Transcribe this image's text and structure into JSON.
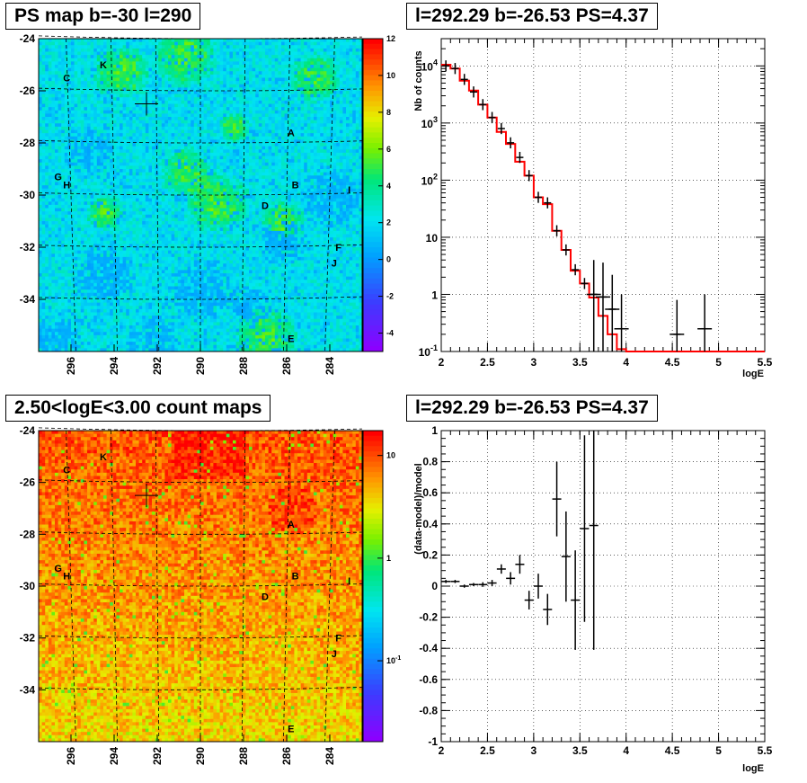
{
  "titles": {
    "ps_map": "PS map b=-30 l=290",
    "spectrum": "l=292.29 b=-26.53 PS=4.37",
    "count_map": "2.50<logE<3.00 count maps",
    "residual": "l=292.29 b=-26.53 PS=4.37"
  },
  "colors": {
    "data": "#000000",
    "model": "#ff0000",
    "grid": "#000000"
  },
  "chart_data": [
    {
      "type": "heatmap",
      "title": "PS map b=-30 l=290",
      "x_ticks": [
        "296",
        "294",
        "292",
        "290",
        "288",
        "286",
        "284"
      ],
      "y_ticks": [
        "-24",
        "-26",
        "-28",
        "-30",
        "-32",
        "-34"
      ],
      "xlim": [
        297.5,
        282.5
      ],
      "ylim": [
        -36,
        -24
      ],
      "colorbar": {
        "scale": "linear",
        "ticks": [
          "12",
          "10",
          "8",
          "6",
          "4",
          "2",
          "0",
          "-2",
          "-4"
        ],
        "range": [
          -5,
          12
        ]
      },
      "sources": [
        {
          "label": "K",
          "l": 294.5,
          "b": -25.0
        },
        {
          "label": "C",
          "l": 296.2,
          "b": -25.5
        },
        {
          "label": "A",
          "l": 285.8,
          "b": -27.6
        },
        {
          "label": "G",
          "l": 296.6,
          "b": -29.3
        },
        {
          "label": "H",
          "l": 296.2,
          "b": -29.6
        },
        {
          "label": "B",
          "l": 285.6,
          "b": -29.6
        },
        {
          "label": "I",
          "l": 283.1,
          "b": -29.8
        },
        {
          "label": "D",
          "l": 287.0,
          "b": -30.4
        },
        {
          "label": "F",
          "l": 283.6,
          "b": -32.0
        },
        {
          "label": "J",
          "l": 283.8,
          "b": -32.6
        },
        {
          "label": "E",
          "l": 285.8,
          "b": -35.5
        }
      ],
      "marker": {
        "l": 292.5,
        "b": -26.5
      }
    },
    {
      "type": "line",
      "title": "l=292.29 b=-26.53 PS=4.37",
      "xlabel": "logE",
      "ylabel": "Nb of counts",
      "xlim": [
        2,
        5.5
      ],
      "ylim": [
        0.1,
        30000
      ],
      "yscale": "log",
      "x_ticks": [
        "2",
        "2.5",
        "3",
        "3.5",
        "4",
        "4.5",
        "5",
        "5.5"
      ],
      "y_ticks": [
        "10^-1",
        "1",
        "10",
        "10^2",
        "10^3",
        "10^4"
      ],
      "grid": true,
      "series": [
        {
          "style": "model-step",
          "edges": [
            2,
            2.1,
            2.2,
            2.3,
            2.4,
            2.5,
            2.6,
            2.7,
            2.8,
            2.9,
            3.0,
            3.1,
            3.2,
            3.3,
            3.4,
            3.5,
            3.6,
            3.7,
            3.8,
            3.9,
            4.0,
            5.5
          ],
          "values": [
            10500,
            9000,
            5500,
            3700,
            2100,
            1250,
            700,
            430,
            210,
            120,
            50,
            38,
            13,
            6,
            2.6,
            1.55,
            0.88,
            0.42,
            0.2,
            0.11,
            0.1
          ]
        },
        {
          "style": "data-points",
          "x": [
            2.05,
            2.15,
            2.25,
            2.35,
            2.45,
            2.55,
            2.65,
            2.75,
            2.85,
            2.95,
            3.05,
            3.15,
            3.25,
            3.35,
            3.45,
            3.55,
            3.65,
            3.75,
            3.85,
            3.95,
            4.55,
            4.85
          ],
          "y": [
            10000,
            9000,
            5800,
            3500,
            2100,
            1250,
            800,
            450,
            250,
            120,
            50,
            40,
            13,
            6,
            2.7,
            1.55,
            1.0,
            0.9,
            0.55,
            0.25,
            0.2,
            0.25
          ]
        }
      ]
    },
    {
      "type": "heatmap",
      "title": "2.50<logE<3.00 count maps",
      "x_ticks": [
        "296",
        "294",
        "292",
        "290",
        "288",
        "286",
        "284"
      ],
      "y_ticks": [
        "-24",
        "-26",
        "-28",
        "-30",
        "-32",
        "-34"
      ],
      "xlim": [
        297.5,
        282.5
      ],
      "ylim": [
        -36,
        -24
      ],
      "colorbar": {
        "scale": "log",
        "ticks": [
          "10",
          "1",
          "10^-1"
        ]
      },
      "marker": {
        "l": 292.5,
        "b": -26.5
      }
    },
    {
      "type": "scatter",
      "title": "l=292.29 b=-26.53 PS=4.37",
      "xlabel": "logE",
      "ylabel": "(data-model)/model",
      "xlim": [
        2,
        5.5
      ],
      "ylim": [
        -1,
        1
      ],
      "x_ticks": [
        "2",
        "2.5",
        "3",
        "3.5",
        "4",
        "4.5",
        "5",
        "5.5"
      ],
      "y_ticks": [
        "1",
        "0.8",
        "0.6",
        "0.4",
        "0.2",
        "0",
        "-0.2",
        "-0.4",
        "-0.6",
        "-0.8",
        "-1"
      ],
      "grid": true,
      "series": [
        {
          "x": [
            2.05,
            2.15,
            2.25,
            2.35,
            2.45,
            2.55,
            2.65,
            2.75,
            2.85,
            2.95,
            3.05,
            3.15,
            3.25,
            3.35,
            3.45,
            3.55,
            3.65
          ],
          "y": [
            0.03,
            0.03,
            0.0,
            0.01,
            0.01,
            0.02,
            0.11,
            0.05,
            0.14,
            -0.09,
            0.0,
            -0.15,
            0.56,
            0.19,
            -0.09,
            0.37,
            0.39
          ],
          "err": [
            0.01,
            0.01,
            0.01,
            0.01,
            0.015,
            0.02,
            0.03,
            0.04,
            0.06,
            0.06,
            0.08,
            0.1,
            0.24,
            0.29,
            0.32,
            0.6,
            0.8
          ]
        }
      ]
    }
  ]
}
